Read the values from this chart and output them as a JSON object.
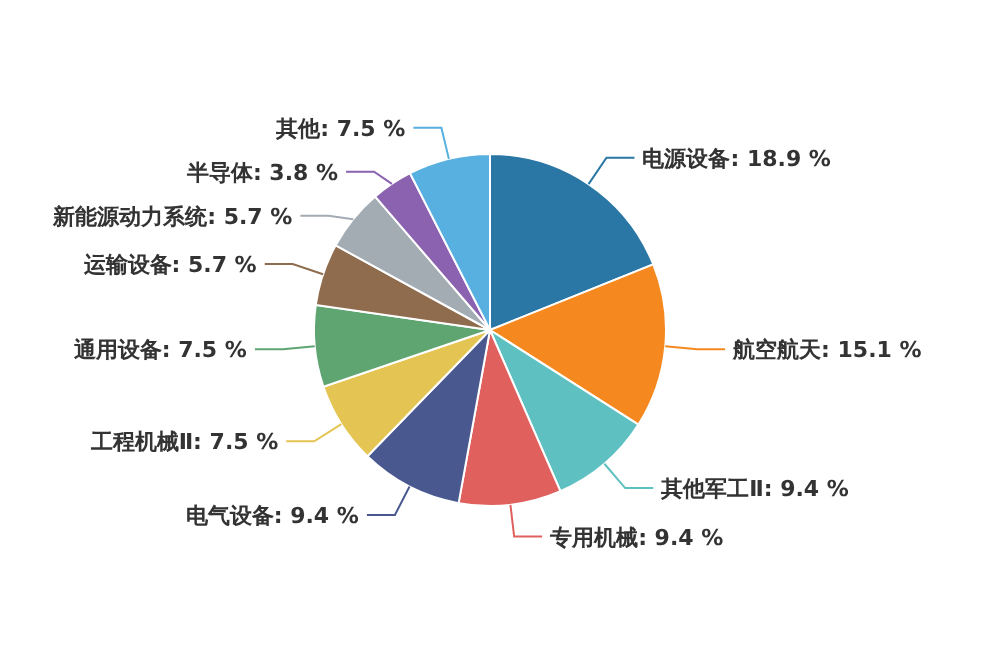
{
  "chart_data": {
    "type": "pie",
    "categories": [
      "电源设备",
      "航空航天",
      "其他军工Ⅱ",
      "专用机械",
      "电气设备",
      "工程机械Ⅱ",
      "通用设备",
      "运输设备",
      "新能源动力系统",
      "半导体",
      "其他"
    ],
    "values": [
      18.9,
      15.1,
      9.4,
      9.4,
      9.4,
      7.5,
      7.5,
      5.7,
      5.7,
      3.8,
      7.5
    ],
    "value_labels": [
      "18.9 %",
      "15.1 %",
      "9.4 %",
      "9.4 %",
      "9.4 %",
      "7.5 %",
      "7.5 %",
      "5.7 %",
      "5.7 %",
      "3.8 %",
      "7.5 %"
    ],
    "colors": [
      "#2a77a5",
      "#f5891f",
      "#5ec0c1",
      "#e0605e",
      "#4a5890",
      "#e4c453",
      "#5fa572",
      "#8f6c4e",
      "#a3abb3",
      "#8b62b0",
      "#57b0e0"
    ]
  }
}
